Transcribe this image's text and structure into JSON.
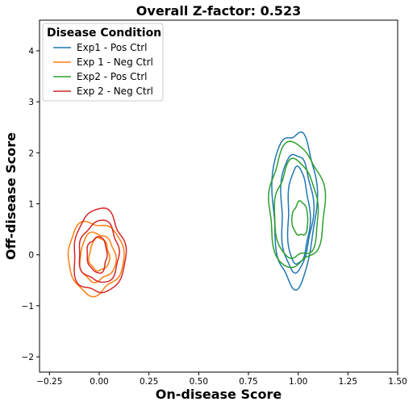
{
  "chart_data": {
    "type": "contour",
    "title": "Overall Z-factor: 0.523",
    "xlabel": "On-disease Score",
    "ylabel": "Off-disease Score",
    "xlim": [
      -0.3,
      1.5
    ],
    "ylim": [
      -2.3,
      4.6
    ],
    "xticks": [
      -0.25,
      0.0,
      0.25,
      0.5,
      0.75,
      1.0,
      1.25,
      1.5
    ],
    "xtick_labels": [
      "−0.25",
      "0.00",
      "0.25",
      "0.50",
      "0.75",
      "1.00",
      "1.25",
      "1.50"
    ],
    "yticks": [
      -2,
      -1,
      0,
      1,
      2,
      3,
      4
    ],
    "ytick_labels": [
      "−2",
      "−1",
      "0",
      "1",
      "2",
      "3",
      "4"
    ],
    "grid": false,
    "legend": {
      "title": "Disease Condition",
      "placement": "top-left"
    },
    "series": [
      {
        "name": "Exp1 - Pos Ctrl",
        "color": "#1f77b4",
        "contours": [
          {
            "center": [
              0.98,
              0.95
            ],
            "rx": 0.11,
            "ry": 1.5
          },
          {
            "center": [
              0.99,
              0.85
            ],
            "rx": 0.08,
            "ry": 1.15
          },
          {
            "center": [
              1.0,
              0.75
            ],
            "rx": 0.055,
            "ry": 0.95
          }
        ]
      },
      {
        "name": "Exp 1 - Neg Ctrl",
        "color": "#ff7f0e",
        "contours": [
          {
            "center": [
              -0.02,
              -0.05
            ],
            "rx": 0.14,
            "ry": 0.7
          },
          {
            "center": [
              -0.01,
              -0.05
            ],
            "rx": 0.09,
            "ry": 0.47
          },
          {
            "center": [
              0.0,
              0.0
            ],
            "rx": 0.05,
            "ry": 0.32
          }
        ]
      },
      {
        "name": "Exp2 - Pos Ctrl",
        "color": "#2ca02c",
        "contours": [
          {
            "center": [
              0.99,
              0.95
            ],
            "rx": 0.14,
            "ry": 1.2
          },
          {
            "center": [
              0.99,
              0.85
            ],
            "rx": 0.11,
            "ry": 0.95
          },
          {
            "center": [
              1.01,
              0.7
            ],
            "rx": 0.04,
            "ry": 0.33
          }
        ]
      },
      {
        "name": "Exp 2 - Neg Ctrl",
        "color": "#d62728",
        "contours": [
          {
            "center": [
              0.0,
              0.05
            ],
            "rx": 0.13,
            "ry": 0.82
          },
          {
            "center": [
              0.0,
              0.05
            ],
            "rx": 0.1,
            "ry": 0.6
          },
          {
            "center": [
              -0.01,
              0.0
            ],
            "rx": 0.05,
            "ry": 0.35
          }
        ]
      }
    ]
  }
}
